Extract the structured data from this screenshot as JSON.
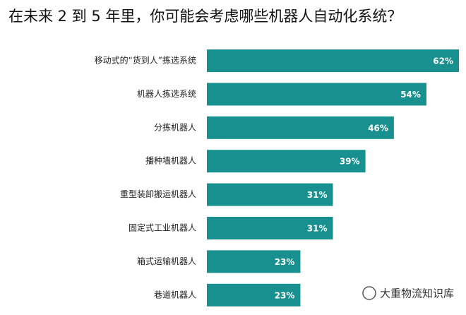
{
  "chart_data": {
    "type": "barh",
    "title": "在未来 2 到 5 年里，你可能会考虑哪些机器人自动化系统？",
    "categories": [
      "移动式的“货到人”拣选系统",
      "机器人拣选系统",
      "分拣机器人",
      "播种墙机器人",
      "重型装卸搬运机器人",
      "固定式工业机器人",
      "箱式运输机器人",
      "巷道机器人"
    ],
    "values": [
      62,
      54,
      46,
      39,
      31,
      31,
      23,
      23
    ],
    "value_labels": [
      "62%",
      "54%",
      "46%",
      "39%",
      "31%",
      "31%",
      "23%",
      "23%"
    ],
    "color": "#18908f",
    "watermark": "大重物流知识库"
  }
}
